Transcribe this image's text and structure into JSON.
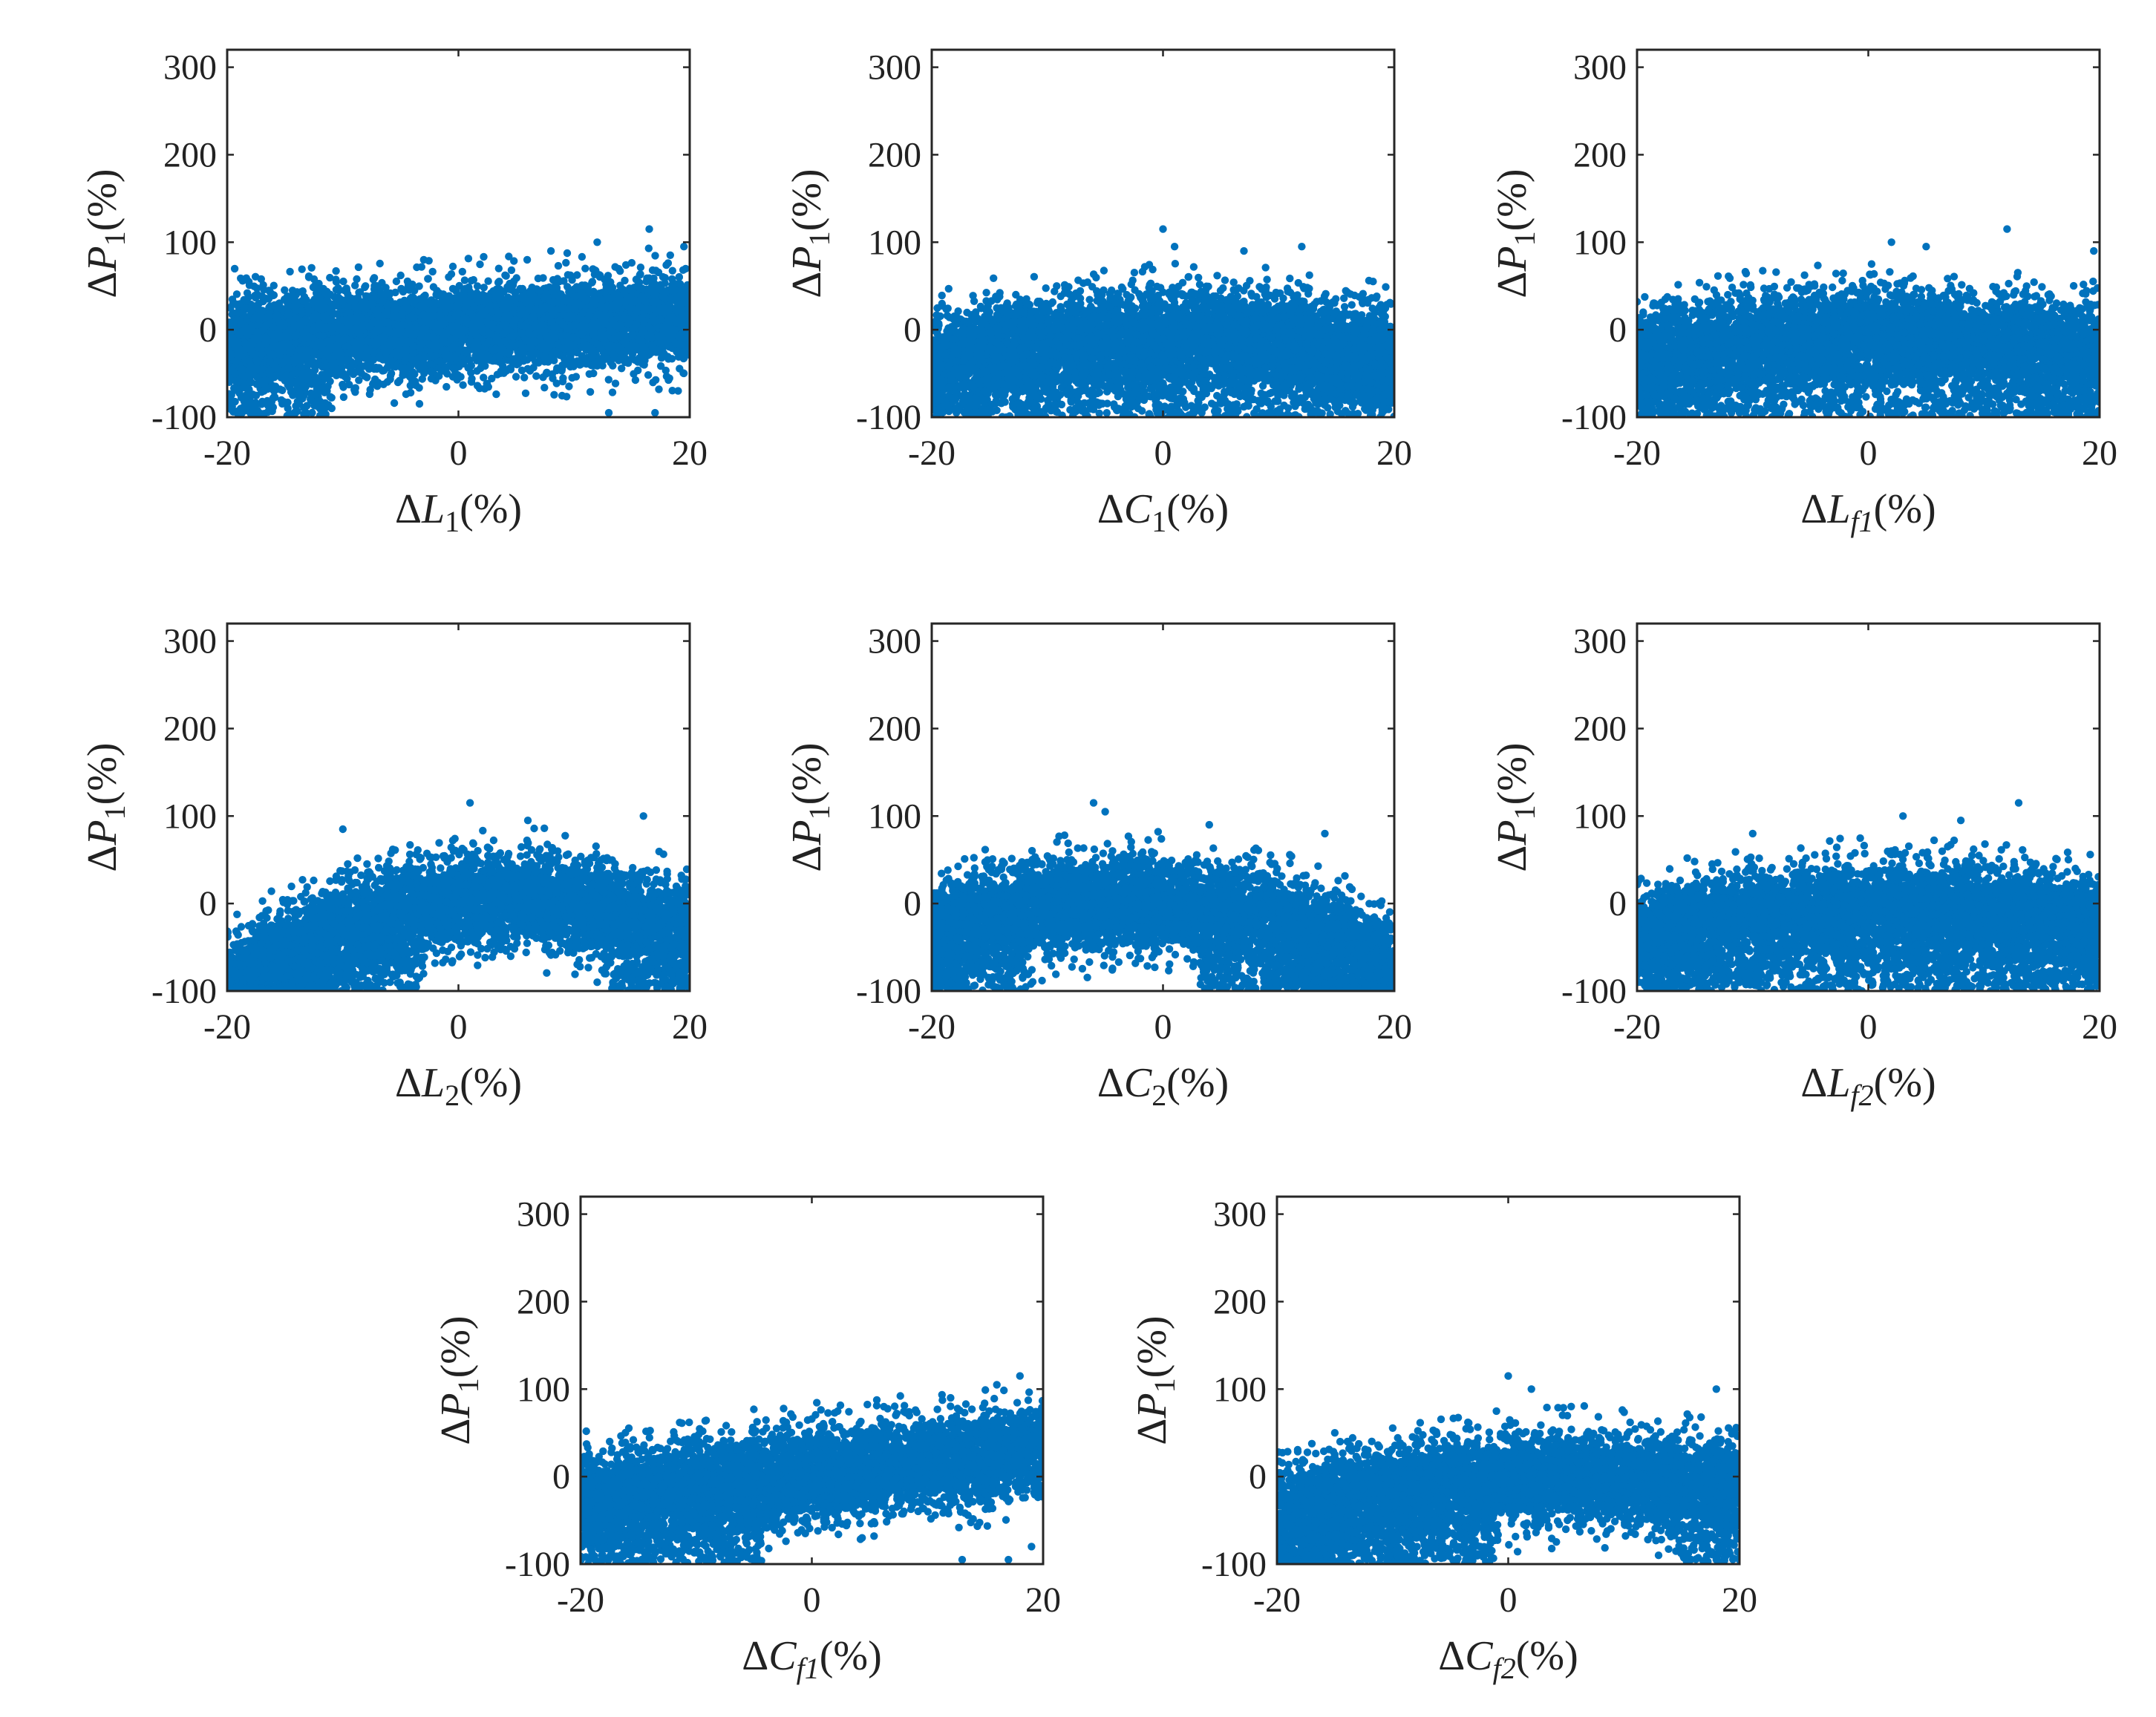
{
  "colors": {
    "marker": "#0072BD",
    "axis": "#262626",
    "background": "#ffffff"
  },
  "chart_data": [
    {
      "type": "scatter",
      "xlabel": {
        "text": "ΔL",
        "sub": "1",
        "italic_sub": false,
        "unit": "(%)"
      },
      "ylabel": {
        "text": "ΔP",
        "sub": "1",
        "unit": "(%)"
      },
      "xlim": [
        -20,
        20
      ],
      "ylim": [
        -100,
        320
      ],
      "xticks": [
        "-20",
        "0",
        "20"
      ],
      "yticks": [
        "-100",
        "0",
        "100",
        "200",
        "300"
      ],
      "trend": {
        "a": 0.0,
        "b": 0.55,
        "c": 0.0,
        "spread": 30,
        "bottom_dense": true
      },
      "samples": [
        [
          -20,
          -20
        ],
        [
          -10,
          -12
        ],
        [
          0,
          -5
        ],
        [
          10,
          5
        ],
        [
          17,
          10
        ],
        [
          20,
          15
        ]
      ],
      "outliers": [
        [
          16.5,
          115
        ],
        [
          12,
          100
        ],
        [
          8,
          90
        ],
        [
          -3,
          80
        ],
        [
          19.5,
          95
        ],
        [
          17,
          -95
        ],
        [
          19,
          -70
        ],
        [
          13,
          -95
        ]
      ]
    },
    {
      "type": "scatter",
      "xlabel": {
        "text": "ΔC",
        "sub": "1",
        "italic_sub": false,
        "unit": "(%)"
      },
      "ylabel": {
        "text": "ΔP",
        "sub": "1",
        "unit": "(%)"
      },
      "xlim": [
        -20,
        20
      ],
      "ylim": [
        -100,
        320
      ],
      "xticks": [
        "-20",
        "0",
        "20"
      ],
      "yticks": [
        "-100",
        "0",
        "100",
        "200",
        "300"
      ],
      "trend": {
        "a": -0.06,
        "b": 0.1,
        "c": -8,
        "spread": 30,
        "bottom_dense": true
      },
      "samples": [
        [
          -20,
          -30
        ],
        [
          -10,
          -15
        ],
        [
          0,
          -10
        ],
        [
          10,
          -12
        ],
        [
          20,
          -25
        ]
      ],
      "outliers": [
        [
          0,
          115
        ],
        [
          1,
          95
        ],
        [
          12,
          95
        ],
        [
          7,
          90
        ],
        [
          19,
          -80
        ],
        [
          18,
          -60
        ],
        [
          -18,
          -90
        ]
      ]
    },
    {
      "type": "scatter",
      "xlabel": {
        "text": "ΔL",
        "sub": "f1",
        "italic_sub": true,
        "unit": "(%)"
      },
      "ylabel": {
        "text": "ΔP",
        "sub": "1",
        "unit": "(%)"
      },
      "xlim": [
        -20,
        20
      ],
      "ylim": [
        -100,
        320
      ],
      "xticks": [
        "-20",
        "0",
        "20"
      ],
      "yticks": [
        "-100",
        "0",
        "100",
        "200",
        "300"
      ],
      "trend": {
        "a": -0.06,
        "b": 0.1,
        "c": -8,
        "spread": 30,
        "bottom_dense": true
      },
      "samples": [
        [
          -20,
          -30
        ],
        [
          -10,
          -15
        ],
        [
          0,
          -10
        ],
        [
          10,
          -12
        ],
        [
          20,
          -25
        ]
      ],
      "outliers": [
        [
          12,
          115
        ],
        [
          2,
          100
        ],
        [
          5,
          95
        ],
        [
          19.5,
          90
        ],
        [
          -19.5,
          -90
        ],
        [
          15,
          -90
        ],
        [
          -17,
          -60
        ]
      ]
    },
    {
      "type": "scatter",
      "xlabel": {
        "text": "ΔL",
        "sub": "2",
        "italic_sub": false,
        "unit": "(%)"
      },
      "ylabel": {
        "text": "ΔP",
        "sub": "1",
        "unit": "(%)"
      },
      "xlim": [
        -20,
        20
      ],
      "ylim": [
        -100,
        320
      ],
      "xticks": [
        "-20",
        "0",
        "20"
      ],
      "yticks": [
        "-100",
        "0",
        "100",
        "200",
        "300"
      ],
      "trend": {
        "a": -0.16,
        "b": 1.5,
        "c": 0,
        "spread": 30,
        "bottom_dense": true
      },
      "samples": [
        [
          -20,
          -85
        ],
        [
          -10,
          -30
        ],
        [
          0,
          0
        ],
        [
          5,
          5
        ],
        [
          10,
          0
        ],
        [
          20,
          -35
        ]
      ],
      "outliers": [
        [
          1,
          115
        ],
        [
          16,
          100
        ],
        [
          -10,
          85
        ],
        [
          6,
          95
        ],
        [
          18,
          -95
        ],
        [
          12,
          -90
        ],
        [
          14,
          -95
        ]
      ]
    },
    {
      "type": "scatter",
      "xlabel": {
        "text": "ΔC",
        "sub": "2",
        "italic_sub": false,
        "unit": "(%)"
      },
      "ylabel": {
        "text": "ΔP",
        "sub": "1",
        "unit": "(%)"
      },
      "xlim": [
        -20,
        20
      ],
      "ylim": [
        -100,
        320
      ],
      "xticks": [
        "-20",
        "0",
        "20"
      ],
      "yticks": [
        "-100",
        "0",
        "100",
        "200",
        "300"
      ],
      "trend": {
        "a": -0.12,
        "b": -1.0,
        "c": -2,
        "spread": 30,
        "bottom_dense": true
      },
      "samples": [
        [
          -20,
          -30
        ],
        [
          -10,
          -4
        ],
        [
          -4,
          0
        ],
        [
          0,
          -2
        ],
        [
          10,
          -24
        ],
        [
          20,
          -70
        ]
      ],
      "outliers": [
        [
          -6,
          115
        ],
        [
          -5,
          105
        ],
        [
          4,
          90
        ],
        [
          14,
          80
        ],
        [
          19,
          -95
        ],
        [
          9,
          -95
        ],
        [
          14,
          -98
        ]
      ]
    },
    {
      "type": "scatter",
      "xlabel": {
        "text": "ΔL",
        "sub": "f2",
        "italic_sub": true,
        "unit": "(%)"
      },
      "ylabel": {
        "text": "ΔP",
        "sub": "1",
        "unit": "(%)"
      },
      "xlim": [
        -20,
        20
      ],
      "ylim": [
        -100,
        320
      ],
      "xticks": [
        "-20",
        "0",
        "20"
      ],
      "yticks": [
        "-100",
        "0",
        "100",
        "200",
        "300"
      ],
      "trend": {
        "a": -0.06,
        "b": 0.2,
        "c": -8,
        "spread": 30,
        "bottom_dense": true
      },
      "samples": [
        [
          -20,
          -35
        ],
        [
          -10,
          -15
        ],
        [
          0,
          -8
        ],
        [
          10,
          -12
        ],
        [
          20,
          -30
        ]
      ],
      "outliers": [
        [
          13,
          115
        ],
        [
          3,
          100
        ],
        [
          8,
          95
        ],
        [
          -10,
          80
        ],
        [
          -19,
          -90
        ],
        [
          19,
          -90
        ],
        [
          17,
          -80
        ]
      ]
    },
    {
      "type": "scatter",
      "xlabel": {
        "text": "ΔC",
        "sub": "f1",
        "italic_sub": true,
        "unit": "(%)"
      },
      "ylabel": {
        "text": "ΔP",
        "sub": "1",
        "unit": "(%)"
      },
      "xlim": [
        -20,
        20
      ],
      "ylim": [
        -100,
        320
      ],
      "xticks": [
        "-20",
        "0",
        "20"
      ],
      "yticks": [
        "-100",
        "0",
        "100",
        "200",
        "300"
      ],
      "trend": {
        "a": 0.0,
        "b": 1.4,
        "c": 0,
        "spread": 30,
        "bottom_dense": true
      },
      "samples": [
        [
          -20,
          -30
        ],
        [
          -10,
          -14
        ],
        [
          0,
          0
        ],
        [
          10,
          14
        ],
        [
          20,
          30
        ]
      ],
      "outliers": [
        [
          18,
          115
        ],
        [
          16,
          105
        ],
        [
          12,
          90
        ],
        [
          -10,
          40
        ],
        [
          17,
          -95
        ],
        [
          13,
          -95
        ],
        [
          19,
          -80
        ]
      ]
    },
    {
      "type": "scatter",
      "xlabel": {
        "text": "ΔC",
        "sub": "f2",
        "italic_sub": true,
        "unit": "(%)"
      },
      "ylabel": {
        "text": "ΔP",
        "sub": "1",
        "unit": "(%)"
      },
      "xlim": [
        -20,
        20
      ],
      "ylim": [
        -100,
        320
      ],
      "xticks": [
        "-20",
        "0",
        "20"
      ],
      "yticks": [
        "-100",
        "0",
        "100",
        "200",
        "300"
      ],
      "trend": {
        "a": -0.06,
        "b": 0.8,
        "c": -5,
        "spread": 30,
        "bottom_dense": true
      },
      "samples": [
        [
          -20,
          -45
        ],
        [
          -10,
          -19
        ],
        [
          0,
          -5
        ],
        [
          10,
          -3
        ],
        [
          20,
          -13
        ]
      ],
      "outliers": [
        [
          0,
          115
        ],
        [
          2,
          100
        ],
        [
          18,
          100
        ],
        [
          -15,
          50
        ],
        [
          18,
          -95
        ],
        [
          13,
          -90
        ],
        [
          19,
          -75
        ]
      ]
    }
  ]
}
